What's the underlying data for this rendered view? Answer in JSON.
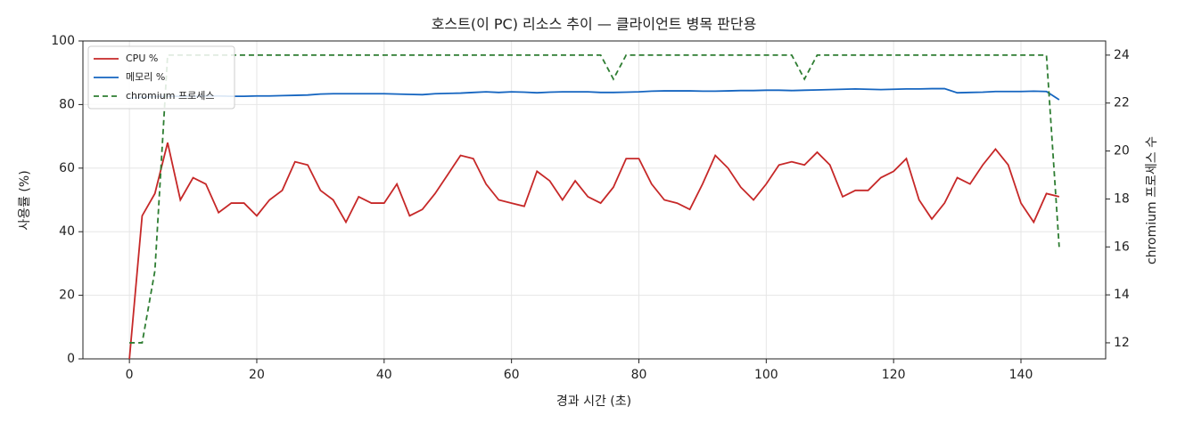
{
  "chart_data": {
    "type": "line",
    "title": "호스트(이 PC) 리소스 추이 — 클라이언트 병목 판단용",
    "xlabel": "경과 시간 (초)",
    "ylabel": "사용률 (%)",
    "y2label": "chromium 프로세스 수",
    "x": [
      0,
      2,
      4,
      6,
      8,
      10,
      12,
      14,
      16,
      18,
      20,
      22,
      24,
      26,
      28,
      30,
      32,
      34,
      36,
      38,
      40,
      42,
      44,
      46,
      48,
      50,
      52,
      54,
      56,
      58,
      60,
      62,
      64,
      66,
      68,
      70,
      72,
      74,
      76,
      78,
      80,
      82,
      84,
      86,
      88,
      90,
      92,
      94,
      96,
      98,
      100,
      102,
      104,
      106,
      108,
      110,
      112,
      114,
      116,
      118,
      120,
      122,
      124,
      126,
      128,
      130,
      132,
      134,
      136,
      138,
      140,
      142,
      144,
      146
    ],
    "series": [
      {
        "name": "CPU %",
        "color": "#c62828",
        "values": [
          0,
          45,
          52,
          68,
          50,
          57,
          55,
          46,
          49,
          49,
          45,
          50,
          53,
          62,
          61,
          53,
          50,
          43,
          51,
          49,
          49,
          55,
          45,
          47,
          52,
          58,
          64,
          63,
          55,
          50,
          49,
          48,
          59,
          56,
          50,
          56,
          51,
          49,
          54,
          63,
          63,
          55,
          50,
          49,
          47,
          55,
          64,
          60,
          54,
          50,
          55,
          61,
          62,
          61,
          65,
          61,
          51,
          53,
          53,
          57,
          59,
          63,
          50,
          44,
          49,
          57,
          55,
          61,
          66,
          61,
          49,
          43,
          52,
          51
        ]
      },
      {
        "name": "메모리 %",
        "color": "#1565c0",
        "values": [
          82,
          82.3,
          82.5,
          82.6,
          82.6,
          82.6,
          82.7,
          82.7,
          82.6,
          82.6,
          82.7,
          82.7,
          82.8,
          82.9,
          83,
          83.3,
          83.4,
          83.4,
          83.4,
          83.4,
          83.4,
          83.3,
          83.2,
          83.1,
          83.4,
          83.5,
          83.6,
          83.8,
          84,
          83.8,
          84,
          83.9,
          83.7,
          83.9,
          84,
          84,
          84,
          83.8,
          83.8,
          83.9,
          84,
          84.2,
          84.3,
          84.3,
          84.3,
          84.2,
          84.2,
          84.3,
          84.4,
          84.4,
          84.5,
          84.5,
          84.4,
          84.5,
          84.6,
          84.7,
          84.8,
          84.9,
          84.8,
          84.7,
          84.8,
          84.9,
          84.9,
          85,
          85,
          83.7,
          83.8,
          83.9,
          84.1,
          84.1,
          84.1,
          84.2,
          84.1,
          81.5
        ]
      },
      {
        "name": "chromium 프로세스",
        "color": "#2e7d32",
        "dashed": true,
        "axis": "y2",
        "values": [
          12,
          12,
          15,
          24,
          24,
          24,
          24,
          24,
          24,
          24,
          24,
          24,
          24,
          24,
          24,
          24,
          24,
          24,
          24,
          24,
          24,
          24,
          24,
          24,
          24,
          24,
          24,
          24,
          24,
          24,
          24,
          24,
          24,
          24,
          24,
          24,
          24,
          24,
          23,
          24,
          24,
          24,
          24,
          24,
          24,
          24,
          24,
          24,
          24,
          24,
          24,
          24,
          24,
          23,
          24,
          24,
          24,
          24,
          24,
          24,
          24,
          24,
          24,
          24,
          24,
          24,
          24,
          24,
          24,
          24,
          24,
          24,
          24,
          16
        ]
      }
    ],
    "xlim": [
      -7.3,
      153.3
    ],
    "ylim": [
      0,
      100
    ],
    "y2lim": [
      11.33,
      24.59
    ],
    "xticks": [
      0,
      20,
      40,
      60,
      80,
      100,
      120,
      140
    ],
    "yticks": [
      0,
      20,
      40,
      60,
      80,
      100
    ],
    "y2ticks": [
      12,
      14,
      16,
      18,
      20,
      22,
      24
    ],
    "grid": true,
    "legend": "upper left"
  }
}
